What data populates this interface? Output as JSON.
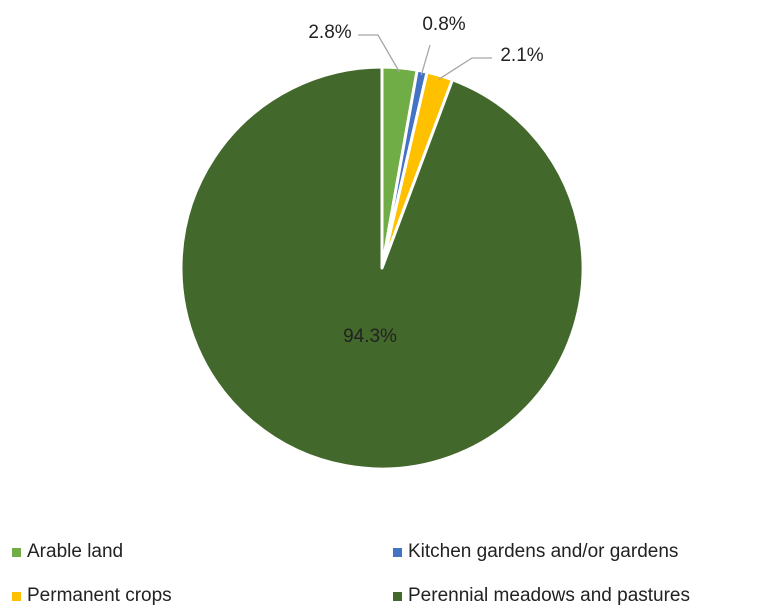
{
  "chart_data": {
    "type": "pie",
    "title": "",
    "start_angle_deg": 0,
    "direction": "clockwise",
    "legend_position": "bottom",
    "slices": [
      {
        "name": "Arable land",
        "value": 2.8,
        "label": "2.8%",
        "color": "#70ad47"
      },
      {
        "name": "Kitchen gardens and/or gardens",
        "value": 0.8,
        "label": "0.8%",
        "color": "#4472c4"
      },
      {
        "name": "Permanent crops",
        "value": 2.1,
        "label": "2.1%",
        "color": "#ffc000"
      },
      {
        "name": "Perennial meadows and pastures",
        "value": 94.3,
        "label": "94.3%",
        "color": "#43682b"
      }
    ]
  }
}
